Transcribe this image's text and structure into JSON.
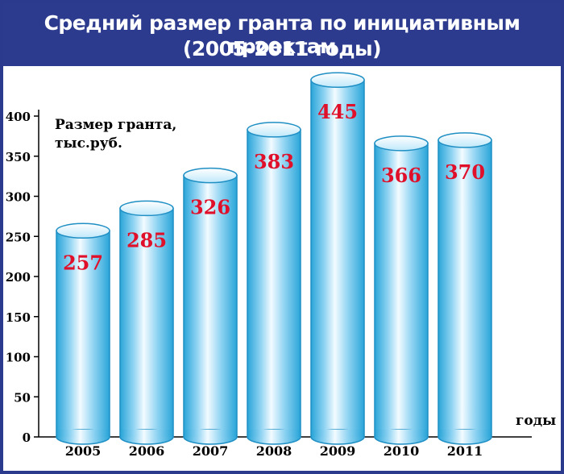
{
  "header": {
    "title_line1": "Средний размер гранта по инициативным проектам",
    "title_line2": "(2005-2011 годы)"
  },
  "chart_data": {
    "type": "bar",
    "title": "Средний размер гранта по инициативным проектам (2005-2011 годы)",
    "ylabel_line1": "Размер гранта,",
    "ylabel_line2": "тыс.руб.",
    "xlabel": "годы",
    "categories": [
      "2005",
      "2006",
      "2007",
      "2008",
      "2009",
      "2010",
      "2011"
    ],
    "values": [
      257,
      285,
      326,
      383,
      445,
      366,
      370
    ],
    "value_labels": [
      "257",
      "285",
      "326",
      "383",
      "445",
      "366",
      "370"
    ],
    "ylim": [
      0,
      400
    ],
    "yticks": [
      "0",
      "50",
      "100",
      "150",
      "200",
      "250",
      "300",
      "350",
      "400"
    ],
    "grid": false,
    "colors": {
      "bar_edge": "#1f8fc4",
      "bar_light": "#f2fbff",
      "bar_mid": "#8fd3f2",
      "bar_dark": "#2aa5d8",
      "value_label": "#e0102a",
      "header_bg": "#2d3b8e"
    }
  }
}
